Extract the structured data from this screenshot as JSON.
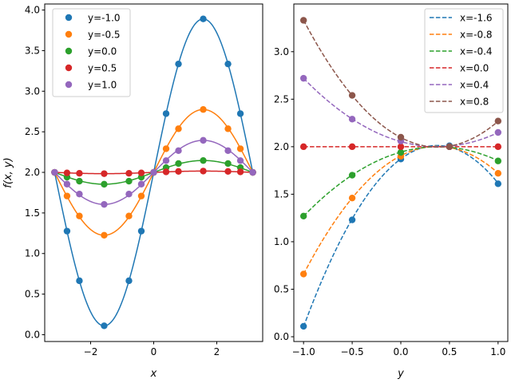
{
  "chart_data": [
    {
      "type": "line",
      "xlabel": "x",
      "ylabel": "f(x, y)",
      "xlim": [
        -3.456,
        3.456
      ],
      "ylim": [
        -0.0839,
        4.0745
      ],
      "xticks": [
        -2,
        0,
        2
      ],
      "yticks": [
        0.0,
        0.5,
        1.0,
        1.5,
        2.0,
        2.5,
        3.0,
        3.5,
        4.0
      ],
      "xtick_labels": [
        "−2",
        "0",
        "2"
      ],
      "ytick_labels": [
        "0.0",
        "0.5",
        "1.0",
        "1.5",
        "2.0",
        "2.5",
        "3.0",
        "3.5",
        "4.0"
      ],
      "legend_position": "upper-left",
      "marker_x": [
        -3.1416,
        -2.7489,
        -2.3562,
        -1.5708,
        -0.7854,
        -0.3927,
        0.0,
        0.3927,
        0.7854,
        1.5708,
        2.3562,
        2.7489,
        3.1416
      ],
      "series": [
        {
          "name": "y=-1.0",
          "color": "#1f77b4",
          "values": [
            2.0,
            1.2762,
            0.6645,
            0.1094,
            0.6645,
            1.2762,
            2.0,
            2.7238,
            3.3355,
            3.8906,
            3.3355,
            2.7238,
            2.0
          ]
        },
        {
          "name": "y=-0.5",
          "color": "#ff7f0e",
          "values": [
            2.0,
            1.7087,
            1.4625,
            1.2254,
            1.4625,
            1.7087,
            2.0,
            2.2913,
            2.5375,
            2.7746,
            2.5375,
            2.2913,
            2.0
          ]
        },
        {
          "name": "y=0.0",
          "color": "#2ca02c",
          "values": [
            2.0,
            1.9413,
            1.8913,
            1.8539,
            1.8913,
            1.9413,
            2.0,
            2.0587,
            2.1087,
            2.1461,
            2.1087,
            2.0587,
            2.0
          ]
        },
        {
          "name": "y=0.5",
          "color": "#d62728",
          "values": [
            2.0,
            1.9937,
            1.9884,
            1.984,
            1.9884,
            1.9937,
            2.0,
            2.0063,
            2.0116,
            2.016,
            2.0116,
            2.0063,
            2.0
          ]
        },
        {
          "name": "y=1.0",
          "color": "#9467bd",
          "values": [
            2.0,
            1.8553,
            1.7327,
            1.6053,
            1.7327,
            1.8553,
            2.0,
            2.1447,
            2.2673,
            2.3947,
            2.2673,
            2.1447,
            2.0
          ]
        }
      ]
    },
    {
      "type": "line",
      "xlabel": "y",
      "ylabel": "",
      "xlim": [
        -1.1,
        1.1
      ],
      "ylim": [
        -0.0502,
        3.502
      ],
      "xticks": [
        -1.0,
        -0.5,
        0.0,
        0.5,
        1.0
      ],
      "yticks": [
        0.0,
        0.5,
        1.0,
        1.5,
        2.0,
        2.5,
        3.0
      ],
      "xtick_labels": [
        "−1.0",
        "−0.5",
        "0.0",
        "0.5",
        "1.0"
      ],
      "ytick_labels": [
        "0.0",
        "0.5",
        "1.0",
        "1.5",
        "2.0",
        "2.5",
        "3.0"
      ],
      "legend_position": "upper-right",
      "marker_x": [
        -1.0,
        -0.5,
        0.0,
        0.5,
        1.0
      ],
      "series": [
        {
          "name": "x=-1.6",
          "color": "#1f77b4",
          "values": [
            0.11,
            1.23,
            1.87,
            2.01,
            1.61
          ]
        },
        {
          "name": "x=-0.8",
          "color": "#ff7f0e",
          "values": [
            0.66,
            1.46,
            1.9,
            2.0,
            1.72
          ]
        },
        {
          "name": "x=-0.4",
          "color": "#2ca02c",
          "values": [
            1.27,
            1.7,
            1.94,
            2.0,
            1.85
          ]
        },
        {
          "name": "x=0.0",
          "color": "#d62728",
          "values": [
            2.0,
            2.0,
            2.0,
            2.0,
            2.0
          ]
        },
        {
          "name": "x=0.4",
          "color": "#9467bd",
          "values": [
            2.72,
            2.29,
            2.06,
            2.0,
            2.15
          ]
        },
        {
          "name": "x=0.8",
          "color": "#8c564b",
          "values": [
            3.33,
            2.54,
            2.1,
            2.0,
            2.27
          ]
        }
      ]
    }
  ]
}
